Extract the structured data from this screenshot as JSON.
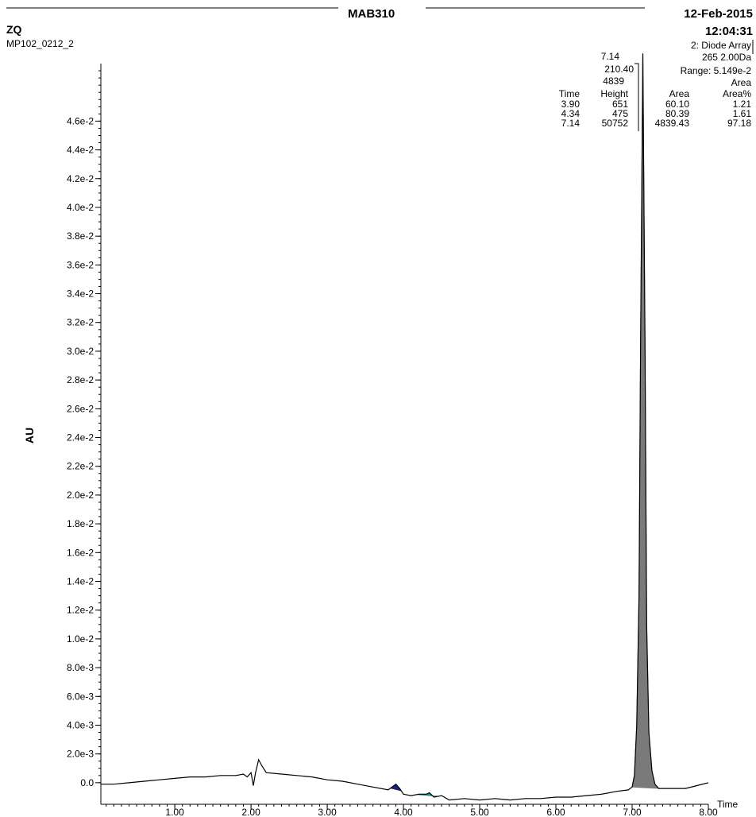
{
  "header": {
    "title": "MAB310",
    "date": "12-Feb-2015",
    "time": "12:04:31",
    "instrument": "ZQ",
    "sample": "MP102_0212_2",
    "detector": "2: Diode Array",
    "wavelength": "265 2.00Da",
    "range": "Range: 5.149e-2"
  },
  "peak_label": {
    "time": "7.14",
    "wavelength": "210.40",
    "area": "4839"
  },
  "peak_table": {
    "headers": [
      "Time",
      "Height",
      "Area",
      "Area%"
    ],
    "header_above": "Area",
    "rows": [
      [
        "3.90",
        "651",
        "60.10",
        "1.21"
      ],
      [
        "4.34",
        "475",
        "80.39",
        "1.61"
      ],
      [
        "7.14",
        "50752",
        "4839.43",
        "97.18"
      ]
    ]
  },
  "chart_data": {
    "type": "line",
    "xlabel": "Time",
    "ylabel": "AU",
    "xlim": [
      0.03,
      8.0
    ],
    "ylim": [
      -0.0015,
      0.05
    ],
    "xticks": [
      "1.00",
      "2.00",
      "3.00",
      "4.00",
      "5.00",
      "6.00",
      "7.00",
      "8.00"
    ],
    "xtick_values": [
      1,
      2,
      3,
      4,
      5,
      6,
      7,
      8
    ],
    "yticks": [
      "0.0",
      "2.0e-3",
      "4.0e-3",
      "6.0e-3",
      "8.0e-3",
      "1.0e-2",
      "1.2e-2",
      "1.4e-2",
      "1.6e-2",
      "1.8e-2",
      "2.0e-2",
      "2.2e-2",
      "2.4e-2",
      "2.6e-2",
      "2.8e-2",
      "3.0e-2",
      "3.2e-2",
      "3.4e-2",
      "3.6e-2",
      "3.8e-2",
      "4.0e-2",
      "4.2e-2",
      "4.4e-2",
      "4.6e-2"
    ],
    "ytick_values": [
      0,
      0.002,
      0.004,
      0.006,
      0.008,
      0.01,
      0.012,
      0.014,
      0.016,
      0.018,
      0.02,
      0.022,
      0.024,
      0.026,
      0.028,
      0.03,
      0.032,
      0.034,
      0.036,
      0.038,
      0.04,
      0.042,
      0.044,
      0.046
    ],
    "series": [
      {
        "points": [
          [
            0.03,
            -0.0001
          ],
          [
            0.2,
            -0.0001
          ],
          [
            0.4,
            0.0
          ],
          [
            0.6,
            0.0001
          ],
          [
            0.8,
            0.0002
          ],
          [
            1.0,
            0.0003
          ],
          [
            1.2,
            0.0004
          ],
          [
            1.4,
            0.0004
          ],
          [
            1.6,
            0.0005
          ],
          [
            1.8,
            0.0005
          ],
          [
            1.9,
            0.0006
          ],
          [
            1.95,
            0.0004
          ],
          [
            2.0,
            0.0007
          ],
          [
            2.03,
            -0.0002
          ],
          [
            2.06,
            0.0007
          ],
          [
            2.1,
            0.0016
          ],
          [
            2.14,
            0.0012
          ],
          [
            2.2,
            0.0007
          ],
          [
            2.4,
            0.0006
          ],
          [
            2.6,
            0.0005
          ],
          [
            2.8,
            0.0004
          ],
          [
            3.0,
            0.0002
          ],
          [
            3.2,
            0.0001
          ],
          [
            3.4,
            -0.0001
          ],
          [
            3.6,
            -0.0003
          ],
          [
            3.8,
            -0.0005
          ],
          [
            3.85,
            -0.0003
          ],
          [
            3.9,
            -0.0001
          ],
          [
            3.95,
            -0.0004
          ],
          [
            4.0,
            -0.0008
          ],
          [
            4.1,
            -0.0009
          ],
          [
            4.2,
            -0.0008
          ],
          [
            4.3,
            -0.0008
          ],
          [
            4.34,
            -0.0007
          ],
          [
            4.4,
            -0.001
          ],
          [
            4.5,
            -0.0009
          ],
          [
            4.6,
            -0.0012
          ],
          [
            4.8,
            -0.0011
          ],
          [
            5.0,
            -0.0012
          ],
          [
            5.2,
            -0.0011
          ],
          [
            5.4,
            -0.0012
          ],
          [
            5.6,
            -0.0011
          ],
          [
            5.8,
            -0.0011
          ],
          [
            6.0,
            -0.001
          ],
          [
            6.2,
            -0.001
          ],
          [
            6.4,
            -0.0009
          ],
          [
            6.6,
            -0.0008
          ],
          [
            6.8,
            -0.0006
          ],
          [
            6.95,
            -0.0005
          ],
          [
            7.0,
            -0.0003
          ],
          [
            7.03,
            0.0005
          ],
          [
            7.06,
            0.004
          ],
          [
            7.09,
            0.013
          ],
          [
            7.11,
            0.03
          ],
          [
            7.14,
            0.0507
          ],
          [
            7.17,
            0.03
          ],
          [
            7.19,
            0.011
          ],
          [
            7.22,
            0.0035
          ],
          [
            7.26,
            0.0008
          ],
          [
            7.3,
            -0.0001
          ],
          [
            7.35,
            -0.0004
          ],
          [
            7.5,
            -0.0004
          ],
          [
            7.7,
            -0.0004
          ],
          [
            7.85,
            -0.0002
          ],
          [
            8.0,
            0.0
          ]
        ]
      }
    ],
    "peaks": [
      {
        "time": 3.9,
        "start": 3.83,
        "end": 3.97,
        "color": "#1a237e"
      },
      {
        "time": 4.34,
        "start": 4.18,
        "end": 4.45,
        "color": "#2e8b8b"
      },
      {
        "time": 7.14,
        "start": 7.0,
        "end": 7.35,
        "color": "#7a7a7a"
      }
    ],
    "grid": false
  }
}
